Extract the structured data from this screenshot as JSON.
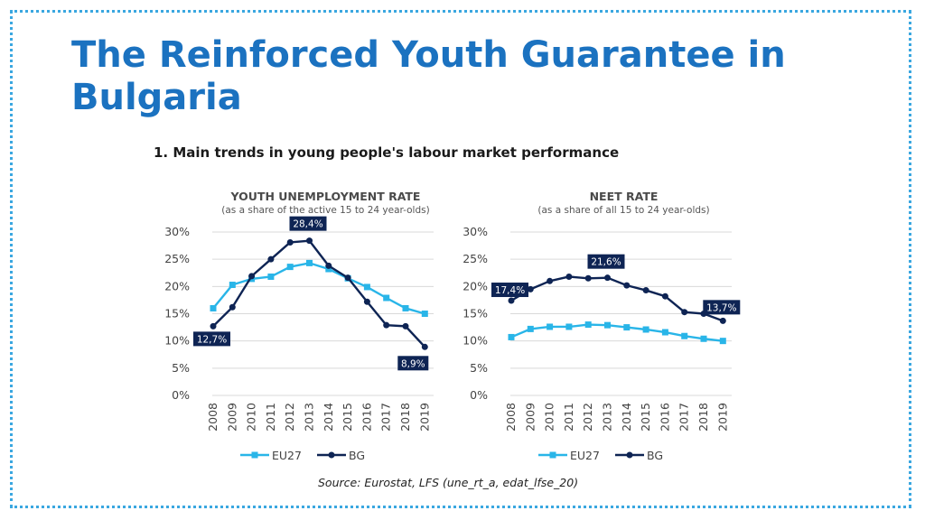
{
  "slide": {
    "title": "The Reinforced Youth Guarantee in Bulgaria",
    "section_heading": "1. Main trends in young people's labour market performance",
    "source": "Source: Eurostat, LFS (une_rt_a, edat_lfse_20)"
  },
  "colors": {
    "frame": "#3aa7e0",
    "title": "#1b72c0",
    "eu27": "#29b5e8",
    "bg": "#0e2454",
    "label_bg": "#0e2454",
    "grid": "#d9d9d9"
  },
  "chart_data": [
    {
      "type": "line",
      "title": "YOUTH UNEMPLOYMENT RATE",
      "subtitle": "(as a share of the active 15 to 24 year-olds)",
      "x": [
        "2008",
        "2009",
        "2010",
        "2011",
        "2012",
        "2013",
        "2014",
        "2015",
        "2016",
        "2017",
        "2018",
        "2019"
      ],
      "ylim": [
        0,
        30
      ],
      "yticks": [
        "0%",
        "5%",
        "10%",
        "15%",
        "20%",
        "25%",
        "30%"
      ],
      "grid": true,
      "legend": "bottom",
      "series": [
        {
          "name": "EU27",
          "color": "#29b5e8",
          "marker": "square",
          "values": [
            16.0,
            20.3,
            21.4,
            21.8,
            23.6,
            24.3,
            23.2,
            21.5,
            19.9,
            17.9,
            16.0,
            15.0
          ]
        },
        {
          "name": "BG",
          "color": "#0e2454",
          "marker": "circle",
          "values": [
            12.7,
            16.2,
            21.9,
            25.0,
            28.1,
            28.4,
            23.8,
            21.6,
            17.2,
            12.9,
            12.7,
            8.9
          ]
        }
      ],
      "annotations": [
        {
          "text": "28,4%",
          "series": "BG",
          "x": "2013",
          "y": 28.4
        },
        {
          "text": "12,7%",
          "series": "BG",
          "x": "2008",
          "y": 12.7
        },
        {
          "text": "8,9%",
          "series": "BG",
          "x": "2019",
          "y": 8.9
        }
      ]
    },
    {
      "type": "line",
      "title": "NEET RATE",
      "subtitle": "(as a share of all 15 to 24 year-olds)",
      "x": [
        "2008",
        "2009",
        "2010",
        "2011",
        "2012",
        "2013",
        "2014",
        "2015",
        "2016",
        "2017",
        "2018",
        "2019"
      ],
      "ylim": [
        0,
        30
      ],
      "yticks": [
        "0%",
        "5%",
        "10%",
        "15%",
        "20%",
        "25%",
        "30%"
      ],
      "grid": true,
      "legend": "bottom",
      "series": [
        {
          "name": "EU27",
          "color": "#29b5e8",
          "marker": "square",
          "values": [
            10.7,
            12.2,
            12.6,
            12.6,
            13.0,
            12.9,
            12.5,
            12.1,
            11.6,
            10.9,
            10.4,
            10.0
          ]
        },
        {
          "name": "BG",
          "color": "#0e2454",
          "marker": "circle",
          "values": [
            17.4,
            19.5,
            21.0,
            21.8,
            21.5,
            21.6,
            20.2,
            19.3,
            18.2,
            15.3,
            15.0,
            13.7
          ]
        }
      ],
      "annotations": [
        {
          "text": "21,6%",
          "series": "BG",
          "x": "2013",
          "y": 21.6
        },
        {
          "text": "17,4%",
          "series": "BG",
          "x": "2008",
          "y": 17.4
        },
        {
          "text": "13,7%",
          "series": "BG",
          "x": "2019",
          "y": 13.7
        }
      ]
    }
  ]
}
